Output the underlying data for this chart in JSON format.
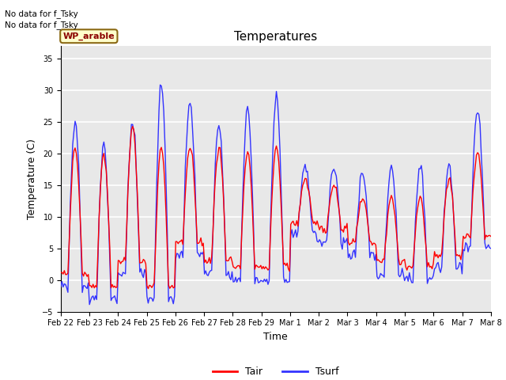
{
  "title": "Temperatures",
  "xlabel": "Time",
  "ylabel": "Temperature (C)",
  "ylim": [
    -5,
    37
  ],
  "yticks": [
    -5,
    0,
    5,
    10,
    15,
    20,
    25,
    30,
    35
  ],
  "text_lines": [
    "No data for f_Tsky",
    "No data for f_Tsky"
  ],
  "wp_label": "WP_arable",
  "legend_entries": [
    "Tair",
    "Tsurf"
  ],
  "tair_color": "#ff0000",
  "tsurf_color": "#3333ff",
  "background_color": "#e8e8e8",
  "x_tick_labels": [
    "Feb 22",
    "Feb 23",
    "Feb 24",
    "Feb 25",
    "Feb 26",
    "Feb 27",
    "Feb 28",
    "Feb 29",
    "Mar 1",
    "Mar 2",
    "Mar 3",
    "Mar 4",
    "Mar 5",
    "Mar 6",
    "Mar 7",
    "Mar 8"
  ],
  "figsize": [
    6.4,
    4.8
  ],
  "dpi": 100
}
